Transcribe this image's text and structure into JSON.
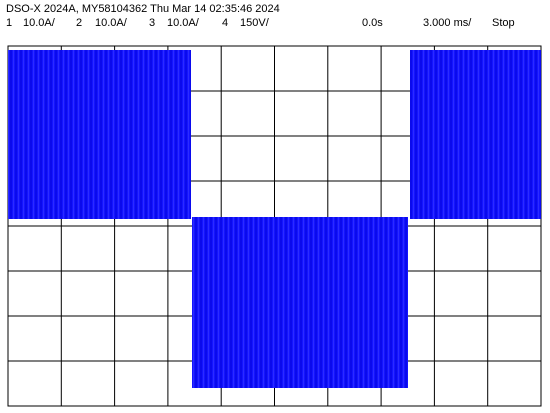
{
  "header": {
    "title": "DSO-X 2024A, MY58104362 Thu Mar 14 02:35:46 2024",
    "channels": [
      {
        "number": "1",
        "scale": "10.0A/"
      },
      {
        "number": "2",
        "scale": "10.0A/"
      },
      {
        "number": "3",
        "scale": "10.0A/"
      },
      {
        "number": "4",
        "scale": "150V/"
      }
    ],
    "time_offset": "0.0s",
    "time_scale": "3.000 ms/",
    "status": "Stop"
  }
}
